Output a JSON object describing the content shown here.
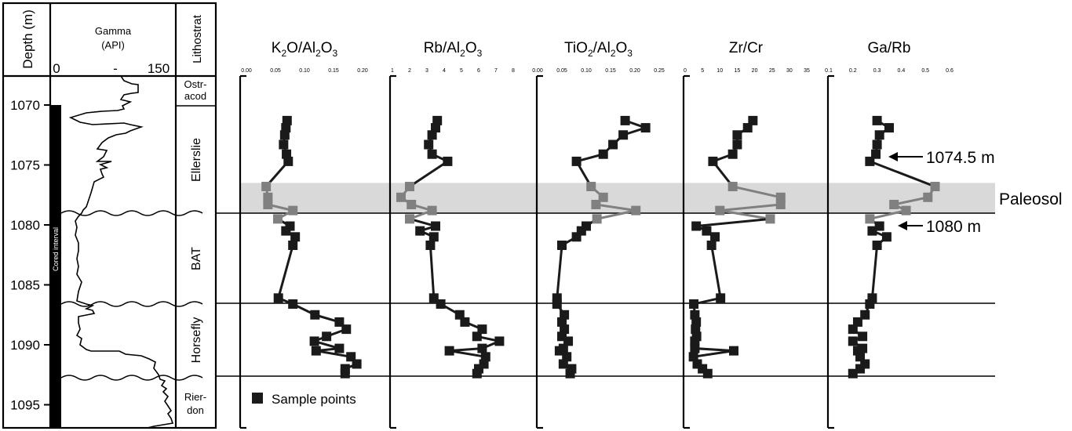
{
  "depth_header": "Depth (m)",
  "gamma_header": {
    "line1": "Gamma",
    "line2": "(API)",
    "min": "0",
    "mid": "-",
    "max": "150"
  },
  "lithostrat_header": "Lithostrat",
  "cored_label": "Cored interval",
  "units": [
    {
      "line1": "Ostr-",
      "line2": "acod"
    },
    {
      "line1": "Ellerslie",
      "line2": ""
    },
    {
      "line1": "BAT",
      "line2": ""
    },
    {
      "line1": "Horsefly",
      "line2": ""
    },
    {
      "line1": "Rier-",
      "line2": "don"
    }
  ],
  "annotations": {
    "paleosol": "Paleosol",
    "upper": "1074.5 m",
    "lower": "1080 m"
  },
  "legend": {
    "label": "Sample points"
  },
  "colors": {
    "axis": "#000000",
    "paleosol_band": "#d9d9d9",
    "paleosol_points": "#808080",
    "points": "#1a1a1a"
  },
  "chart_data": {
    "type": "line",
    "depth_axis": {
      "label": "Depth (m)",
      "ticks": [
        1070,
        1075,
        1080,
        1085,
        1090,
        1095
      ],
      "range": [
        1068.1,
        1097.7
      ]
    },
    "paleosol_interval": [
      1076.5,
      1079.0
    ],
    "unit_boundaries": [
      1079.0,
      1086.8,
      1092.8
    ],
    "depths": [
      1071.3,
      1071.9,
      1072.5,
      1073.3,
      1074.1,
      1074.7,
      1076.8,
      1077.7,
      1078.3,
      1078.8,
      1079.5,
      1080.1,
      1080.5,
      1081.0,
      1081.7,
      1086.1,
      1086.6,
      1087.5,
      1088.1,
      1088.7,
      1089.3,
      1089.7,
      1090.3,
      1090.5,
      1091.0,
      1091.6,
      1092.0,
      1092.4
    ],
    "paleosol_range": [
      6,
      10
    ],
    "panels": [
      {
        "title_parts": [
          {
            "t": "K"
          },
          {
            "t": "2",
            "sub": true
          },
          {
            "t": "O/Al"
          },
          {
            "t": "2",
            "sub": true
          },
          {
            "t": "O"
          },
          {
            "t": "3",
            "sub": true
          }
        ],
        "ticks": [
          "0.00",
          "0.05",
          "0.10",
          "0.15",
          "0.20"
        ],
        "range": [
          0,
          0.2
        ],
        "values": [
          0.07,
          0.068,
          0.066,
          0.064,
          0.069,
          0.072,
          0.034,
          0.037,
          0.037,
          0.08,
          0.054,
          0.075,
          0.068,
          0.084,
          0.08,
          0.055,
          0.08,
          0.118,
          0.16,
          0.172,
          0.138,
          0.117,
          0.16,
          0.12,
          0.18,
          0.19,
          0.17,
          0.17
        ]
      },
      {
        "title_parts": [
          {
            "t": "Rb/Al"
          },
          {
            "t": "2",
            "sub": true
          },
          {
            "t": "O"
          },
          {
            "t": "3",
            "sub": true
          }
        ],
        "ticks": [
          "1",
          "2",
          "3",
          "4",
          "5",
          "6",
          "7",
          "8"
        ],
        "range": [
          1,
          8
        ],
        "values": [
          3.6,
          3.5,
          3.3,
          3.1,
          3.3,
          4.2,
          2.0,
          1.5,
          2.1,
          3.3,
          2.0,
          3.5,
          2.6,
          3.4,
          3.2,
          3.4,
          3.8,
          4.9,
          5.2,
          6.2,
          5.9,
          7.2,
          6.2,
          4.3,
          6.4,
          6.3,
          6.0,
          5.9
        ]
      },
      {
        "title_parts": [
          {
            "t": "TiO"
          },
          {
            "t": "2",
            "sub": true
          },
          {
            "t": "/Al"
          },
          {
            "t": "2",
            "sub": true
          },
          {
            "t": "O"
          },
          {
            "t": "3",
            "sub": true
          }
        ],
        "ticks": [
          "0.00",
          "0.05",
          "0.10",
          "0.15",
          "0.20",
          "0.25"
        ],
        "range": [
          0,
          0.25
        ],
        "values": [
          0.18,
          0.222,
          0.176,
          0.155,
          0.135,
          0.08,
          0.11,
          0.135,
          0.12,
          0.202,
          0.122,
          0.1,
          0.09,
          0.08,
          0.05,
          0.04,
          0.04,
          0.055,
          0.05,
          0.055,
          0.05,
          0.063,
          0.053,
          0.045,
          0.06,
          0.053,
          0.07,
          0.067
        ]
      },
      {
        "title_parts": [
          {
            "t": "Zr/Cr"
          }
        ],
        "ticks": [
          "0",
          "5",
          "10",
          "15",
          "20",
          "25",
          "30",
          "35"
        ],
        "range": [
          0,
          35
        ],
        "values": [
          19.5,
          18.0,
          15.0,
          15.0,
          13.7,
          8.0,
          13.7,
          27.5,
          27.5,
          10.0,
          24.5,
          3.2,
          6.2,
          8.6,
          7.6,
          10.2,
          2.5,
          2.8,
          3.2,
          3.0,
          3.3,
          2.8,
          2.8,
          14.0,
          2.4,
          3.5,
          5.0,
          6.5
        ]
      },
      {
        "title_parts": [
          {
            "t": "Ga/Rb"
          }
        ],
        "ticks": [
          "0.1",
          "0.2",
          "0.3",
          "0.4",
          "0.5",
          "0.6"
        ],
        "range": [
          0.1,
          0.6
        ],
        "values": [
          0.3,
          0.35,
          0.31,
          0.3,
          0.295,
          0.27,
          0.54,
          0.51,
          0.37,
          0.42,
          0.27,
          0.31,
          0.28,
          0.34,
          0.3,
          0.28,
          0.27,
          0.25,
          0.22,
          0.2,
          0.24,
          0.2,
          0.24,
          0.22,
          0.23,
          0.25,
          0.23,
          0.2
        ]
      }
    ]
  }
}
